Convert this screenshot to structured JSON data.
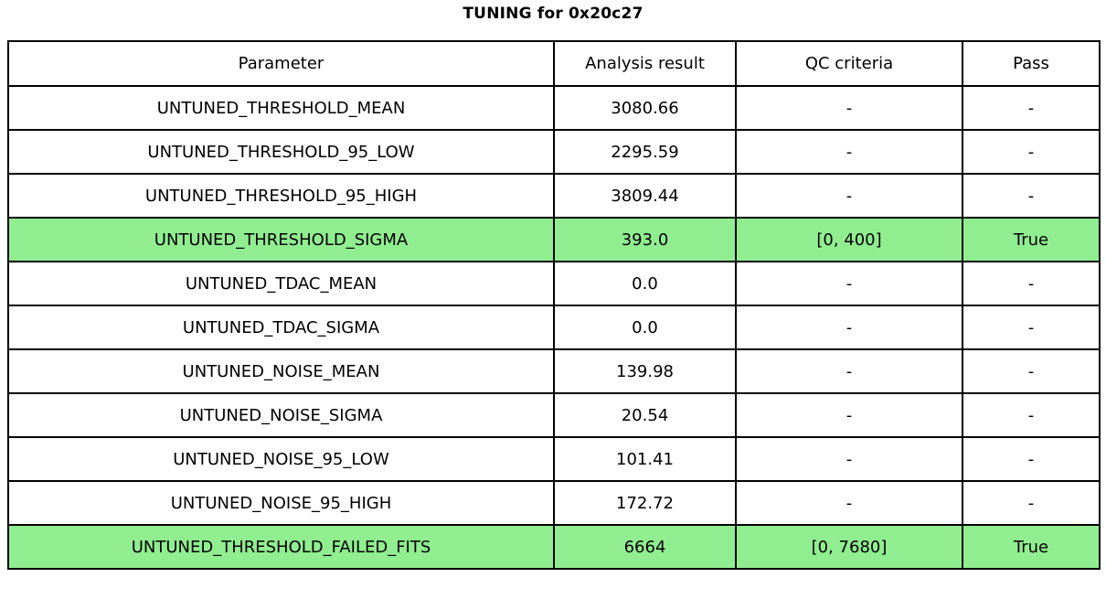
{
  "title": "TUNING for 0x20c27",
  "colors": {
    "background": "#FFFFFF",
    "border": "#000000",
    "text": "#000000",
    "highlight_green": "#90EE90"
  },
  "table": {
    "headers": [
      "Parameter",
      "Analysis result",
      "QC criteria",
      "Pass"
    ],
    "rows": [
      {
        "parameter": "UNTUNED_THRESHOLD_MEAN",
        "analysis_result": "3080.66",
        "qc_criteria": "-",
        "pass": "-",
        "highlighted": false
      },
      {
        "parameter": "UNTUNED_THRESHOLD_95_LOW",
        "analysis_result": "2295.59",
        "qc_criteria": "-",
        "pass": "-",
        "highlighted": false
      },
      {
        "parameter": "UNTUNED_THRESHOLD_95_HIGH",
        "analysis_result": "3809.44",
        "qc_criteria": "-",
        "pass": "-",
        "highlighted": false
      },
      {
        "parameter": "UNTUNED_THRESHOLD_SIGMA",
        "analysis_result": "393.0",
        "qc_criteria": "[0, 400]",
        "pass": "True",
        "highlighted": true
      },
      {
        "parameter": "UNTUNED_TDAC_MEAN",
        "analysis_result": "0.0",
        "qc_criteria": "-",
        "pass": "-",
        "highlighted": false
      },
      {
        "parameter": "UNTUNED_TDAC_SIGMA",
        "analysis_result": "0.0",
        "qc_criteria": "-",
        "pass": "-",
        "highlighted": false
      },
      {
        "parameter": "UNTUNED_NOISE_MEAN",
        "analysis_result": "139.98",
        "qc_criteria": "-",
        "pass": "-",
        "highlighted": false
      },
      {
        "parameter": "UNTUNED_NOISE_SIGMA",
        "analysis_result": "20.54",
        "qc_criteria": "-",
        "pass": "-",
        "highlighted": false
      },
      {
        "parameter": "UNTUNED_NOISE_95_LOW",
        "analysis_result": "101.41",
        "qc_criteria": "-",
        "pass": "-",
        "highlighted": false
      },
      {
        "parameter": "UNTUNED_NOISE_95_HIGH",
        "analysis_result": "172.72",
        "qc_criteria": "-",
        "pass": "-",
        "highlighted": false
      },
      {
        "parameter": "UNTUNED_THRESHOLD_FAILED_FITS",
        "analysis_result": "6664",
        "qc_criteria": "[0, 7680]",
        "pass": "True",
        "highlighted": true
      }
    ]
  },
  "chart_data": {
    "type": "table",
    "title": "TUNING for 0x20c27",
    "columns": [
      "Parameter",
      "Analysis result",
      "QC criteria",
      "Pass"
    ],
    "rows": [
      [
        "UNTUNED_THRESHOLD_MEAN",
        "3080.66",
        "-",
        "-"
      ],
      [
        "UNTUNED_THRESHOLD_95_LOW",
        "2295.59",
        "-",
        "-"
      ],
      [
        "UNTUNED_THRESHOLD_95_HIGH",
        "3809.44",
        "-",
        "-"
      ],
      [
        "UNTUNED_THRESHOLD_SIGMA",
        "393.0",
        "[0, 400]",
        "True"
      ],
      [
        "UNTUNED_TDAC_MEAN",
        "0.0",
        "-",
        "-"
      ],
      [
        "UNTUNED_TDAC_SIGMA",
        "0.0",
        "-",
        "-"
      ],
      [
        "UNTUNED_NOISE_MEAN",
        "139.98",
        "-",
        "-"
      ],
      [
        "UNTUNED_NOISE_SIGMA",
        "20.54",
        "-",
        "-"
      ],
      [
        "UNTUNED_NOISE_95_LOW",
        "101.41",
        "-",
        "-"
      ],
      [
        "UNTUNED_NOISE_95_HIGH",
        "172.72",
        "-",
        "-"
      ],
      [
        "UNTUNED_THRESHOLD_FAILED_FITS",
        "6664",
        "[0, 7680]",
        "True"
      ]
    ],
    "highlighted_rows": [
      3,
      10
    ],
    "highlight_color": "#90EE90",
    "layout": {
      "grid": true,
      "legend": "none"
    }
  }
}
